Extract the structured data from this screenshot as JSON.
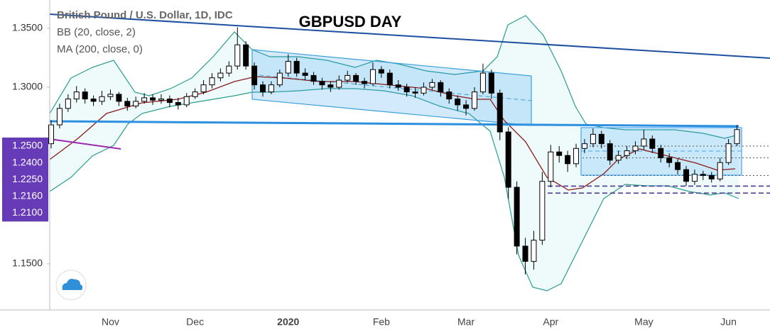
{
  "chart_data": {
    "type": "candlestick",
    "title": "GBPUSD DAY",
    "legend_lines": [
      "British Pound / U.S. Dollar, 1D, IDC",
      "BB (20, close, 2)",
      "MA (200, close, 0)"
    ],
    "categories": [
      null,
      null,
      null,
      null,
      null,
      null,
      null,
      "Nov",
      null,
      null,
      null,
      null,
      null,
      null,
      null,
      null,
      null,
      "Dec",
      null,
      null,
      null,
      null,
      null,
      null,
      null,
      null,
      null,
      null,
      "2020",
      null,
      null,
      null,
      null,
      null,
      null,
      null,
      null,
      null,
      null,
      "Feb",
      null,
      null,
      null,
      null,
      null,
      null,
      null,
      null,
      null,
      "Mar",
      null,
      null,
      null,
      null,
      null,
      null,
      null,
      null,
      null,
      "Apr",
      null,
      null,
      null,
      null,
      null,
      null,
      null,
      null,
      null,
      null,
      "May",
      null,
      null,
      null,
      null,
      null,
      null,
      null,
      null,
      null,
      "Jun",
      null
    ],
    "open": [
      1.252,
      1.268,
      1.282,
      1.29,
      1.296,
      1.29,
      1.288,
      1.292,
      1.294,
      1.288,
      1.284,
      1.288,
      1.291,
      1.289,
      1.29,
      1.287,
      1.285,
      1.292,
      1.296,
      1.302,
      1.308,
      1.312,
      1.318,
      1.336,
      1.318,
      1.302,
      1.296,
      1.302,
      1.312,
      1.322,
      1.312,
      1.31,
      1.305,
      1.302,
      1.3,
      1.306,
      1.31,
      1.305,
      1.303,
      1.315,
      1.312,
      1.302,
      1.3,
      1.296,
      1.295,
      1.3,
      1.304,
      1.296,
      1.29,
      1.285,
      1.282,
      1.296,
      1.312,
      1.295,
      1.262,
      1.215,
      1.165,
      1.152,
      1.17,
      1.22,
      1.245,
      1.242,
      1.235,
      1.248,
      1.252,
      1.26,
      1.252,
      1.238,
      1.242,
      1.246,
      1.25,
      1.256,
      1.248,
      1.24,
      1.236,
      1.23,
      1.22,
      1.226,
      1.225,
      1.222,
      1.236,
      1.252
    ],
    "high": [
      1.272,
      1.286,
      1.294,
      1.301,
      1.299,
      1.293,
      1.297,
      1.298,
      1.296,
      1.291,
      1.292,
      1.295,
      1.294,
      1.294,
      1.293,
      1.291,
      1.295,
      1.299,
      1.306,
      1.312,
      1.316,
      1.322,
      1.351,
      1.339,
      1.321,
      1.305,
      1.305,
      1.315,
      1.328,
      1.325,
      1.316,
      1.313,
      1.308,
      1.305,
      1.31,
      1.314,
      1.312,
      1.308,
      1.321,
      1.318,
      1.315,
      1.306,
      1.303,
      1.3,
      1.304,
      1.307,
      1.306,
      1.299,
      1.293,
      1.289,
      1.3,
      1.32,
      1.315,
      1.298,
      1.266,
      1.22,
      1.172,
      1.178,
      1.228,
      1.251,
      1.25,
      1.246,
      1.252,
      1.256,
      1.265,
      1.263,
      1.255,
      1.246,
      1.25,
      1.254,
      1.264,
      1.259,
      1.251,
      1.244,
      1.239,
      1.233,
      1.23,
      1.229,
      1.228,
      1.24,
      1.256,
      1.268
    ],
    "low": [
      1.248,
      1.265,
      1.279,
      1.287,
      1.286,
      1.284,
      1.285,
      1.289,
      1.284,
      1.28,
      1.282,
      1.286,
      1.285,
      1.286,
      1.283,
      1.281,
      1.283,
      1.29,
      1.294,
      1.299,
      1.305,
      1.309,
      1.315,
      1.315,
      1.298,
      1.292,
      1.294,
      1.3,
      1.309,
      1.309,
      1.306,
      1.302,
      1.298,
      1.296,
      1.298,
      1.304,
      1.302,
      1.299,
      1.301,
      1.308,
      1.299,
      1.297,
      1.292,
      1.291,
      1.293,
      1.298,
      1.292,
      1.286,
      1.28,
      1.276,
      1.28,
      1.294,
      1.29,
      1.255,
      1.205,
      1.158,
      1.141,
      1.145,
      1.166,
      1.215,
      1.236,
      1.228,
      1.232,
      1.244,
      1.249,
      1.248,
      1.234,
      1.235,
      1.239,
      1.243,
      1.247,
      1.244,
      1.236,
      1.232,
      1.226,
      1.216,
      1.217,
      1.221,
      1.219,
      1.22,
      1.234,
      1.25
    ],
    "close": [
      1.268,
      1.282,
      1.29,
      1.296,
      1.29,
      1.288,
      1.292,
      1.294,
      1.288,
      1.284,
      1.288,
      1.291,
      1.289,
      1.29,
      1.287,
      1.285,
      1.292,
      1.296,
      1.302,
      1.308,
      1.312,
      1.318,
      1.336,
      1.318,
      1.302,
      1.296,
      1.302,
      1.312,
      1.322,
      1.312,
      1.31,
      1.305,
      1.302,
      1.3,
      1.306,
      1.31,
      1.305,
      1.303,
      1.315,
      1.312,
      1.302,
      1.3,
      1.296,
      1.295,
      1.3,
      1.304,
      1.296,
      1.29,
      1.285,
      1.282,
      1.296,
      1.312,
      1.295,
      1.262,
      1.215,
      1.165,
      1.152,
      1.17,
      1.22,
      1.245,
      1.242,
      1.235,
      1.248,
      1.252,
      1.26,
      1.252,
      1.238,
      1.242,
      1.246,
      1.25,
      1.256,
      1.248,
      1.24,
      1.236,
      1.23,
      1.22,
      1.226,
      1.225,
      1.222,
      1.236,
      1.252,
      1.264
    ],
    "up_color": "#ffffff",
    "down_color": "#000000",
    "ylim": [
      1.1108,
      1.3741
    ],
    "yticks": [
      {
        "value": 1.35,
        "label": "1.3500"
      },
      {
        "value": 1.3,
        "label": "1.3000"
      },
      {
        "value": 1.15,
        "label": "1.1500"
      }
    ],
    "levels": [
      {
        "value": 1.25,
        "label": "1.2500",
        "color": "#555555"
      },
      {
        "value": 1.24,
        "label": "1.2400",
        "color": "#555555"
      },
      {
        "value": 1.225,
        "label": "1.2250",
        "color": "#555555"
      },
      {
        "value": 1.216,
        "label": "1.2160",
        "color": "#4a3a9a"
      },
      {
        "value": 1.21,
        "label": "1.2100",
        "color": "#4a3a9a"
      }
    ],
    "grid": false
  }
}
